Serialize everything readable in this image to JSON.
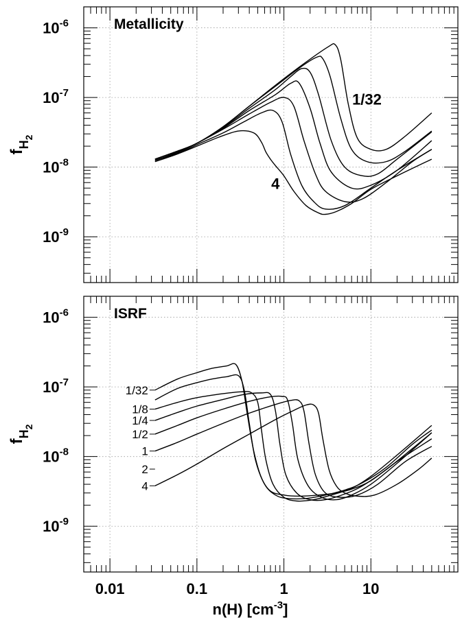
{
  "chart_data": [
    {
      "type": "line",
      "annotation": "Metallicity",
      "ylabel_base": "f",
      "ylabel_sub": "H",
      "ylabel_subsub": "2",
      "x_scale": "log",
      "y_scale": "log",
      "xlim": [
        0.005,
        100
      ],
      "ylim": [
        2.2e-10,
        2e-06
      ],
      "grid": true,
      "x_ticks": [
        {
          "label": "0.01",
          "value": 0.01
        },
        {
          "label": "0.1",
          "value": 0.1
        },
        {
          "label": "1",
          "value": 1
        },
        {
          "label": "10",
          "value": 10
        }
      ],
      "y_ticks": [
        {
          "mantissa": "10",
          "exp": "-9",
          "value": 1e-09
        },
        {
          "mantissa": "10",
          "exp": "-8",
          "value": 1e-08
        },
        {
          "mantissa": "10",
          "exp": "-7",
          "value": 1e-07
        },
        {
          "mantissa": "10",
          "exp": "-6",
          "value": 1e-06
        }
      ],
      "curve_labels": [
        {
          "text": "1/32",
          "x": 9.0,
          "y": 9.5e-08
        },
        {
          "text": "4",
          "x": 0.8,
          "y": 5.8e-09
        }
      ],
      "series": [
        {
          "x": [
            0.033,
            0.06,
            0.1,
            0.2,
            0.4,
            0.8,
            1.6,
            3.2,
            3.9,
            4.5,
            5.5,
            7,
            10,
            15,
            25,
            50
          ],
          "y": [
            1.3e-08,
            1.7e-08,
            2.2e-08,
            3.8e-08,
            7.5e-08,
            1.5e-07,
            2.9e-07,
            5.3e-07,
            5.7e-07,
            3.5e-07,
            8e-08,
            2.6e-08,
            1.8e-08,
            1.8e-08,
            2.8e-08,
            6e-08
          ]
        },
        {
          "x": [
            0.033,
            0.06,
            0.1,
            0.2,
            0.4,
            0.8,
            1.6,
            2.4,
            2.8,
            3.4,
            4.5,
            6,
            9,
            15,
            25,
            50
          ],
          "y": [
            1.3e-08,
            1.7e-08,
            2.2e-08,
            3.8e-08,
            7.5e-08,
            1.45e-07,
            2.8e-07,
            3.8e-07,
            3.6e-07,
            2e-07,
            5e-08,
            1.8e-08,
            1.2e-08,
            1.2e-08,
            1.7e-08,
            3.3e-08
          ]
        },
        {
          "x": [
            0.033,
            0.06,
            0.1,
            0.2,
            0.4,
            0.8,
            1.2,
            1.6,
            2.0,
            2.5,
            3.5,
            5,
            8,
            12,
            20,
            50
          ],
          "y": [
            1.3e-08,
            1.7e-08,
            2.2e-08,
            3.7e-08,
            7e-08,
            1.3e-07,
            2e-07,
            2.6e-07,
            2.3e-07,
            1.1e-07,
            2.4e-08,
            1e-08,
            7.5e-09,
            8e-09,
            1.3e-08,
            3.2e-08
          ]
        },
        {
          "x": [
            0.033,
            0.06,
            0.1,
            0.2,
            0.4,
            0.8,
            1.2,
            1.5,
            2.0,
            2.6,
            3.5,
            6,
            10,
            20,
            50
          ],
          "y": [
            1.25e-08,
            1.65e-08,
            2.2e-08,
            3.6e-08,
            6.5e-08,
            1.1e-07,
            1.6e-07,
            1.6e-07,
            7e-08,
            2.2e-08,
            8.5e-09,
            5e-09,
            5.5e-09,
            9e-09,
            2.4e-08
          ]
        },
        {
          "x": [
            0.033,
            0.06,
            0.1,
            0.2,
            0.4,
            0.7,
            1.0,
            1.3,
            1.7,
            2.3,
            3,
            5,
            8,
            15,
            30,
            50
          ],
          "y": [
            1.25e-08,
            1.6e-08,
            2.2e-08,
            3.5e-08,
            5.8e-08,
            8.5e-08,
            1e-07,
            7.5e-08,
            2.4e-08,
            8e-09,
            4.5e-09,
            3.2e-09,
            3.5e-09,
            6e-09,
            1.2e-08,
            1.8e-08
          ]
        },
        {
          "x": [
            0.033,
            0.06,
            0.1,
            0.2,
            0.35,
            0.55,
            0.75,
            0.95,
            1.2,
            1.6,
            2.2,
            3,
            5,
            10,
            20,
            50
          ],
          "y": [
            1.2e-08,
            1.55e-08,
            2.1e-08,
            3.1e-08,
            4.5e-08,
            6e-08,
            6.5e-08,
            4.5e-08,
            1.5e-08,
            5.5e-09,
            3.2e-09,
            2.5e-09,
            2.8e-09,
            5e-09,
            9e-09,
            1.8e-08
          ]
        },
        {
          "x": [
            0.033,
            0.06,
            0.1,
            0.18,
            0.3,
            0.45,
            0.55,
            0.62,
            0.7,
            0.8,
            1.0,
            1.3,
            1.8,
            2.5,
            3,
            4,
            6,
            10,
            20,
            50
          ],
          "y": [
            1.2e-08,
            1.55e-08,
            2e-08,
            2.7e-08,
            3.3e-08,
            3.1e-08,
            2.3e-08,
            1.65e-08,
            1.3e-08,
            1.05e-08,
            7.5e-09,
            4.5e-09,
            2.8e-09,
            2.2e-09,
            2.1e-09,
            2.3e-09,
            3e-09,
            4.8e-09,
            7.5e-09,
            1.3e-08
          ]
        }
      ]
    },
    {
      "type": "line",
      "annotation": "ISRF",
      "xlabel_main": "n(H) [cm",
      "xlabel_exp": "-3",
      "xlabel_end": "]",
      "ylabel_base": "f",
      "ylabel_sub": "H",
      "ylabel_subsub": "2",
      "x_scale": "log",
      "y_scale": "log",
      "xlim": [
        0.005,
        100
      ],
      "ylim": [
        2.2e-10,
        2e-06
      ],
      "grid": true,
      "x_ticks": [
        {
          "label": "0.01",
          "value": 0.01
        },
        {
          "label": "0.1",
          "value": 0.1
        },
        {
          "label": "1",
          "value": 1
        },
        {
          "label": "10",
          "value": 10
        }
      ],
      "y_ticks": [
        {
          "mantissa": "10",
          "exp": "-9",
          "value": 1e-09
        },
        {
          "mantissa": "10",
          "exp": "-8",
          "value": 1e-08
        },
        {
          "mantissa": "10",
          "exp": "-7",
          "value": 1e-07
        },
        {
          "mantissa": "10",
          "exp": "-6",
          "value": 1e-06
        }
      ],
      "curve_labels": [
        {
          "text": "1/32",
          "x": 0.033,
          "y": 9e-08
        },
        {
          "text": "1/8",
          "x": 0.033,
          "y": 4.8e-08
        },
        {
          "text": "1/4",
          "x": 0.033,
          "y": 3.3e-08
        },
        {
          "text": "1/2",
          "x": 0.033,
          "y": 2.1e-08
        },
        {
          "text": "1",
          "x": 0.033,
          "y": 1.2e-08
        },
        {
          "text": "2",
          "x": 0.033,
          "y": 6.6e-09
        },
        {
          "text": "4",
          "x": 0.033,
          "y": 3.8e-09
        }
      ],
      "series": [
        {
          "x": [
            0.033,
            0.06,
            0.1,
            0.15,
            0.22,
            0.28,
            0.33,
            0.38,
            0.45,
            0.55,
            0.7,
            1.0,
            1.5,
            2.5,
            4,
            6,
            10,
            20,
            50
          ],
          "y": [
            9e-08,
            1.3e-07,
            1.6e-07,
            1.85e-07,
            2e-07,
            2.1e-07,
            1.2e-07,
            4e-08,
            1.2e-08,
            5e-09,
            3.2e-09,
            2.8e-09,
            2.7e-09,
            2.8e-09,
            3e-09,
            3.4e-09,
            4.5e-09,
            8.5e-09,
            1.8e-08
          ]
        },
        {
          "x": [
            0.033,
            0.06,
            0.1,
            0.15,
            0.22,
            0.3,
            0.35,
            0.4,
            0.47,
            0.6,
            0.8,
            1.1,
            1.8,
            3,
            5,
            8,
            15,
            30,
            50
          ],
          "y": [
            6.5e-08,
            9.5e-08,
            1.15e-07,
            1.3e-07,
            1.4e-07,
            1.45e-07,
            9e-08,
            3e-08,
            9e-09,
            4e-09,
            2.8e-09,
            2.5e-09,
            2.5e-09,
            2.8e-09,
            3.3e-09,
            4.2e-09,
            7e-09,
            1.5e-08,
            2.4e-08
          ]
        },
        {
          "x": [
            0.033,
            0.06,
            0.1,
            0.2,
            0.32,
            0.42,
            0.5,
            0.55,
            0.62,
            0.75,
            1.0,
            1.4,
            2.2,
            3.5,
            6,
            10,
            20,
            50
          ],
          "y": [
            4.8e-08,
            6e-08,
            7e-08,
            8e-08,
            8.5e-08,
            8.3e-08,
            6e-08,
            2.5e-08,
            9e-09,
            4e-09,
            2.6e-09,
            2.3e-09,
            2.4e-09,
            2.8e-09,
            3.5e-09,
            5.2e-09,
            1.05e-08,
            2.8e-08
          ]
        },
        {
          "x": [
            0.033,
            0.06,
            0.1,
            0.2,
            0.35,
            0.55,
            0.7,
            0.8,
            0.9,
            1.05,
            1.4,
            2.0,
            3,
            5,
            8,
            15,
            30,
            50
          ],
          "y": [
            3.3e-08,
            4.3e-08,
            5.3e-08,
            6.6e-08,
            7.8e-08,
            8.2e-08,
            7.8e-08,
            4.5e-08,
            1.5e-08,
            5.5e-09,
            3e-09,
            2.4e-09,
            2.4e-09,
            2.9e-09,
            3.8e-09,
            6.5e-09,
            1.3e-08,
            2.2e-08
          ]
        },
        {
          "x": [
            0.033,
            0.06,
            0.1,
            0.2,
            0.4,
            0.7,
            0.95,
            1.1,
            1.25,
            1.45,
            1.9,
            2.7,
            4,
            6,
            10,
            20,
            50
          ],
          "y": [
            2.1e-08,
            2.8e-08,
            3.6e-08,
            4.8e-08,
            6.2e-08,
            7.2e-08,
            7.3e-08,
            6.5e-08,
            3e-08,
            9e-09,
            3.8e-09,
            2.6e-09,
            2.4e-09,
            2.8e-09,
            4e-09,
            8e-09,
            2.2e-08
          ]
        },
        {
          "x": [
            0.033,
            0.06,
            0.1,
            0.2,
            0.4,
            0.8,
            1.2,
            1.5,
            1.7,
            1.95,
            2.3,
            3,
            4.5,
            7,
            12,
            25,
            50
          ],
          "y": [
            1.2e-08,
            1.6e-08,
            2.1e-08,
            3e-08,
            4.2e-08,
            5.6e-08,
            6.4e-08,
            6.3e-08,
            4.5e-08,
            1.5e-08,
            5.5e-09,
            3e-09,
            2.6e-09,
            2.8e-09,
            4e-09,
            8.5e-09,
            1.4e-08
          ]
        },
        {
          "x": [
            0.033,
            0.06,
            0.1,
            0.2,
            0.4,
            0.8,
            1.3,
            1.8,
            2.2,
            2.5,
            2.8,
            3.3,
            4,
            5,
            7,
            11,
            20,
            35,
            50
          ],
          "y": [
            3.8e-09,
            5.5e-09,
            7.8e-09,
            1.3e-08,
            2.1e-08,
            3.4e-08,
            4.6e-08,
            5.5e-08,
            5.5e-08,
            4.2e-08,
            1.8e-08,
            6.5e-09,
            3.8e-09,
            3e-09,
            2.7e-09,
            2.8e-09,
            4e-09,
            6.5e-09,
            9.5e-09
          ]
        }
      ]
    }
  ]
}
